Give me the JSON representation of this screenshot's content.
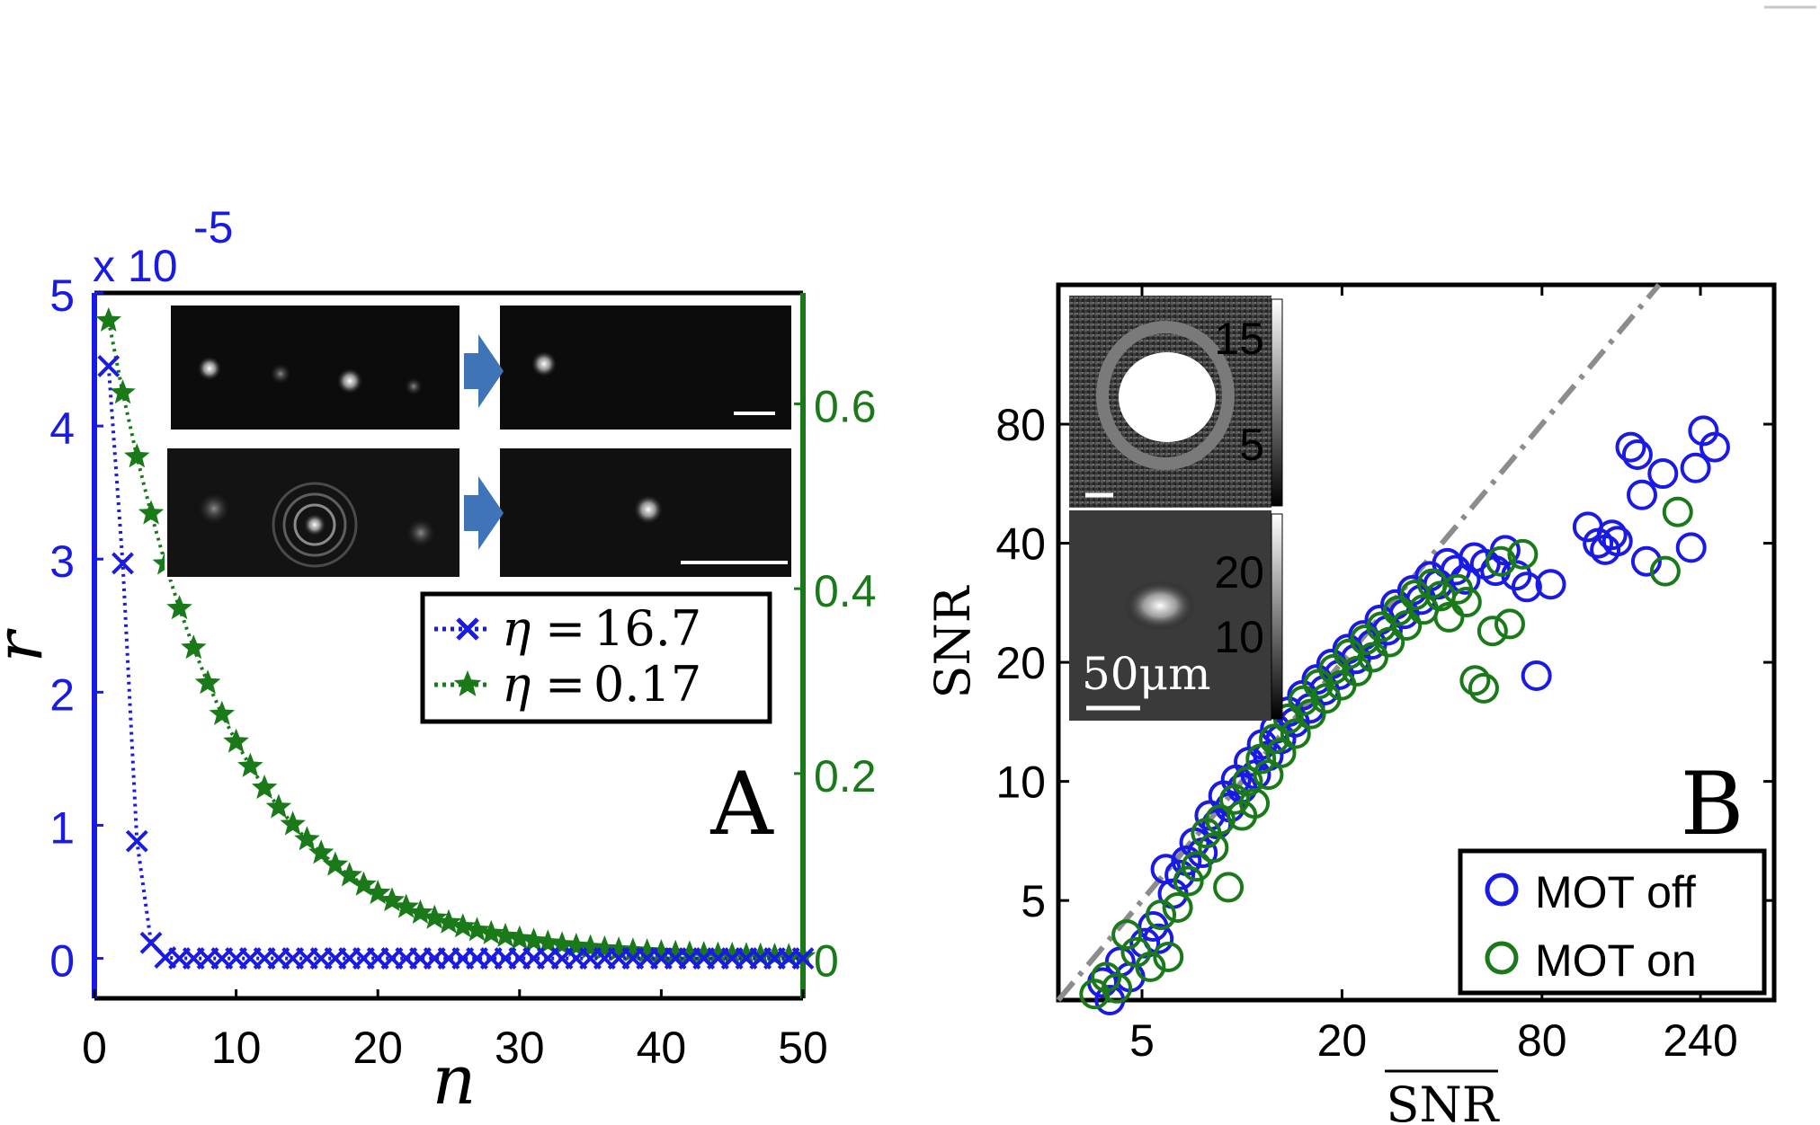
{
  "chart_data": [
    {
      "type": "line",
      "panel_label": "A",
      "xlabel": "n",
      "ylabel": "r̃",
      "y_exponent": "x 10",
      "y_exponent_power": "-5",
      "xlim": [
        0,
        50
      ],
      "ylim_left": [
        -0.3,
        5
      ],
      "ylim_right": [
        -0.0432,
        0.72
      ],
      "xticks": [
        "0",
        "10",
        "20",
        "30",
        "40",
        "50"
      ],
      "yticks_left": [
        "0",
        "1",
        "2",
        "3",
        "4",
        "5"
      ],
      "yticks_right": [
        "0",
        "0.2",
        "0.4",
        "0.6"
      ],
      "series": [
        {
          "name": "η = 16.7",
          "axis": "left",
          "marker": "x",
          "color": "#1a1ae6",
          "decay": 0.45,
          "amplitude": 4.45
        },
        {
          "name": "η = 0.17",
          "axis": "right",
          "marker": "star",
          "color": "#1a7a1a",
          "decay": 0.12,
          "amplitude": 0.69
        }
      ],
      "legend": {
        "eta_prefix": "η",
        "equals": "=",
        "value_1": "16.7",
        "value_2": "0.17"
      }
    },
    {
      "type": "scatter",
      "panel_label": "B",
      "xlabel": "SNR",
      "ylabel": "SNR",
      "xscale": "log",
      "yscale": "log",
      "xlim": [
        2.8,
        400
      ],
      "ylim": [
        2.8,
        180
      ],
      "xticks": [
        "5",
        "20",
        "80",
        "240"
      ],
      "yticks": [
        "5",
        "10",
        "20",
        "40",
        "80"
      ],
      "reference_line": "y = x",
      "series": [
        {
          "name": "MOT off",
          "color": "#1a1ae6",
          "points": [
            [
              3.8,
              3.1
            ],
            [
              4.0,
              2.8
            ],
            [
              4.3,
              3.5
            ],
            [
              4.6,
              3.2
            ],
            [
              5.1,
              3.9
            ],
            [
              5.4,
              4.3
            ],
            [
              5.6,
              4.0
            ],
            [
              5.9,
              6.0
            ],
            [
              6.2,
              5.2
            ],
            [
              6.5,
              5.8
            ],
            [
              6.8,
              6.3
            ],
            [
              7.2,
              7.0
            ],
            [
              7.6,
              6.6
            ],
            [
              8.0,
              8.2
            ],
            [
              8.4,
              7.8
            ],
            [
              8.8,
              9.2
            ],
            [
              9.2,
              8.6
            ],
            [
              9.6,
              10.1
            ],
            [
              10.0,
              9.6
            ],
            [
              10.5,
              11.2
            ],
            [
              11.0,
              10.4
            ],
            [
              11.5,
              12.4
            ],
            [
              12.0,
              11.6
            ],
            [
              12.6,
              13.6
            ],
            [
              13.1,
              12.8
            ],
            [
              13.8,
              15.0
            ],
            [
              14.4,
              14.1
            ],
            [
              15.2,
              16.5
            ],
            [
              16.0,
              15.3
            ],
            [
              16.8,
              18.1
            ],
            [
              17.7,
              17.0
            ],
            [
              18.6,
              19.8
            ],
            [
              19.6,
              18.6
            ],
            [
              20.8,
              21.6
            ],
            [
              22.0,
              20.4
            ],
            [
              23.2,
              23.4
            ],
            [
              24.6,
              22.2
            ],
            [
              26.0,
              25.6
            ],
            [
              27.4,
              24.1
            ],
            [
              29.0,
              28.0
            ],
            [
              30.8,
              26.5
            ],
            [
              32.6,
              30.4
            ],
            [
              34.6,
              28.8
            ],
            [
              36.8,
              33.0
            ],
            [
              39.0,
              31.5
            ],
            [
              41.5,
              35.6
            ],
            [
              44.0,
              34.2
            ],
            [
              47.0,
              32.4
            ],
            [
              50.0,
              36.8
            ],
            [
              54.0,
              35.4
            ],
            [
              58.0,
              34.1
            ],
            [
              62.0,
              38.4
            ],
            [
              67.0,
              33.2
            ],
            [
              72.0,
              31.0
            ],
            [
              77.0,
              18.5
            ],
            [
              85.0,
              31.5
            ],
            [
              110.0,
              44.0
            ],
            [
              118.0,
              40.0
            ],
            [
              124.0,
              38.5
            ],
            [
              130.0,
              42.0
            ],
            [
              135.0,
              40.5
            ],
            [
              148.0,
              70.0
            ],
            [
              155.0,
              67.0
            ],
            [
              160.0,
              53.0
            ],
            [
              165.0,
              36.0
            ],
            [
              185.0,
              60.0
            ],
            [
              225.0,
              39.0
            ],
            [
              232.0,
              62.0
            ],
            [
              245.0,
              77.0
            ],
            [
              265.0,
              70.0
            ]
          ]
        },
        {
          "name": "MOT on",
          "color": "#1a7a1a",
          "points": [
            [
              3.6,
              2.9
            ],
            [
              3.9,
              3.2
            ],
            [
              4.2,
              3.0
            ],
            [
              4.5,
              4.1
            ],
            [
              4.8,
              3.7
            ],
            [
              5.3,
              3.4
            ],
            [
              5.7,
              4.6
            ],
            [
              6.0,
              3.6
            ],
            [
              6.4,
              4.8
            ],
            [
              6.9,
              5.6
            ],
            [
              7.3,
              6.1
            ],
            [
              7.8,
              7.4
            ],
            [
              8.2,
              6.8
            ],
            [
              8.6,
              8.0
            ],
            [
              9.1,
              5.4
            ],
            [
              9.5,
              9.0
            ],
            [
              10.0,
              8.2
            ],
            [
              10.4,
              10.0
            ],
            [
              10.9,
              8.8
            ],
            [
              11.4,
              11.4
            ],
            [
              12.0,
              10.4
            ],
            [
              12.5,
              12.8
            ],
            [
              13.1,
              11.8
            ],
            [
              13.8,
              14.4
            ],
            [
              14.5,
              13.2
            ],
            [
              15.3,
              16.0
            ],
            [
              16.1,
              14.8
            ],
            [
              17.0,
              17.6
            ],
            [
              17.9,
              16.2
            ],
            [
              18.9,
              19.2
            ],
            [
              19.9,
              17.5
            ],
            [
              21.0,
              21.0
            ],
            [
              22.2,
              19.0
            ],
            [
              23.5,
              22.8
            ],
            [
              24.8,
              20.6
            ],
            [
              26.3,
              24.6
            ],
            [
              27.8,
              22.5
            ],
            [
              29.5,
              27.0
            ],
            [
              31.3,
              24.8
            ],
            [
              33.2,
              29.6
            ],
            [
              35.2,
              27.2
            ],
            [
              37.4,
              31.6
            ],
            [
              39.6,
              29.4
            ],
            [
              42.0,
              26.0
            ],
            [
              44.6,
              30.6
            ],
            [
              47.4,
              28.4
            ],
            [
              50.3,
              18.0
            ],
            [
              53.4,
              17.2
            ],
            [
              56.8,
              24.0
            ],
            [
              60.2,
              36.0
            ],
            [
              64.0,
              25.0
            ],
            [
              70.0,
              37.5
            ],
            [
              205.0,
              48.0
            ],
            [
              188.0,
              34.0
            ]
          ]
        }
      ]
    }
  ],
  "inset_a": {
    "arrow_color": "#3f74b8"
  },
  "inset_b": {
    "colorbar_top_ticks": [
      "15",
      "5"
    ],
    "colorbar_bottom_ticks": [
      "20",
      "10"
    ],
    "scale_label": "50μm"
  }
}
